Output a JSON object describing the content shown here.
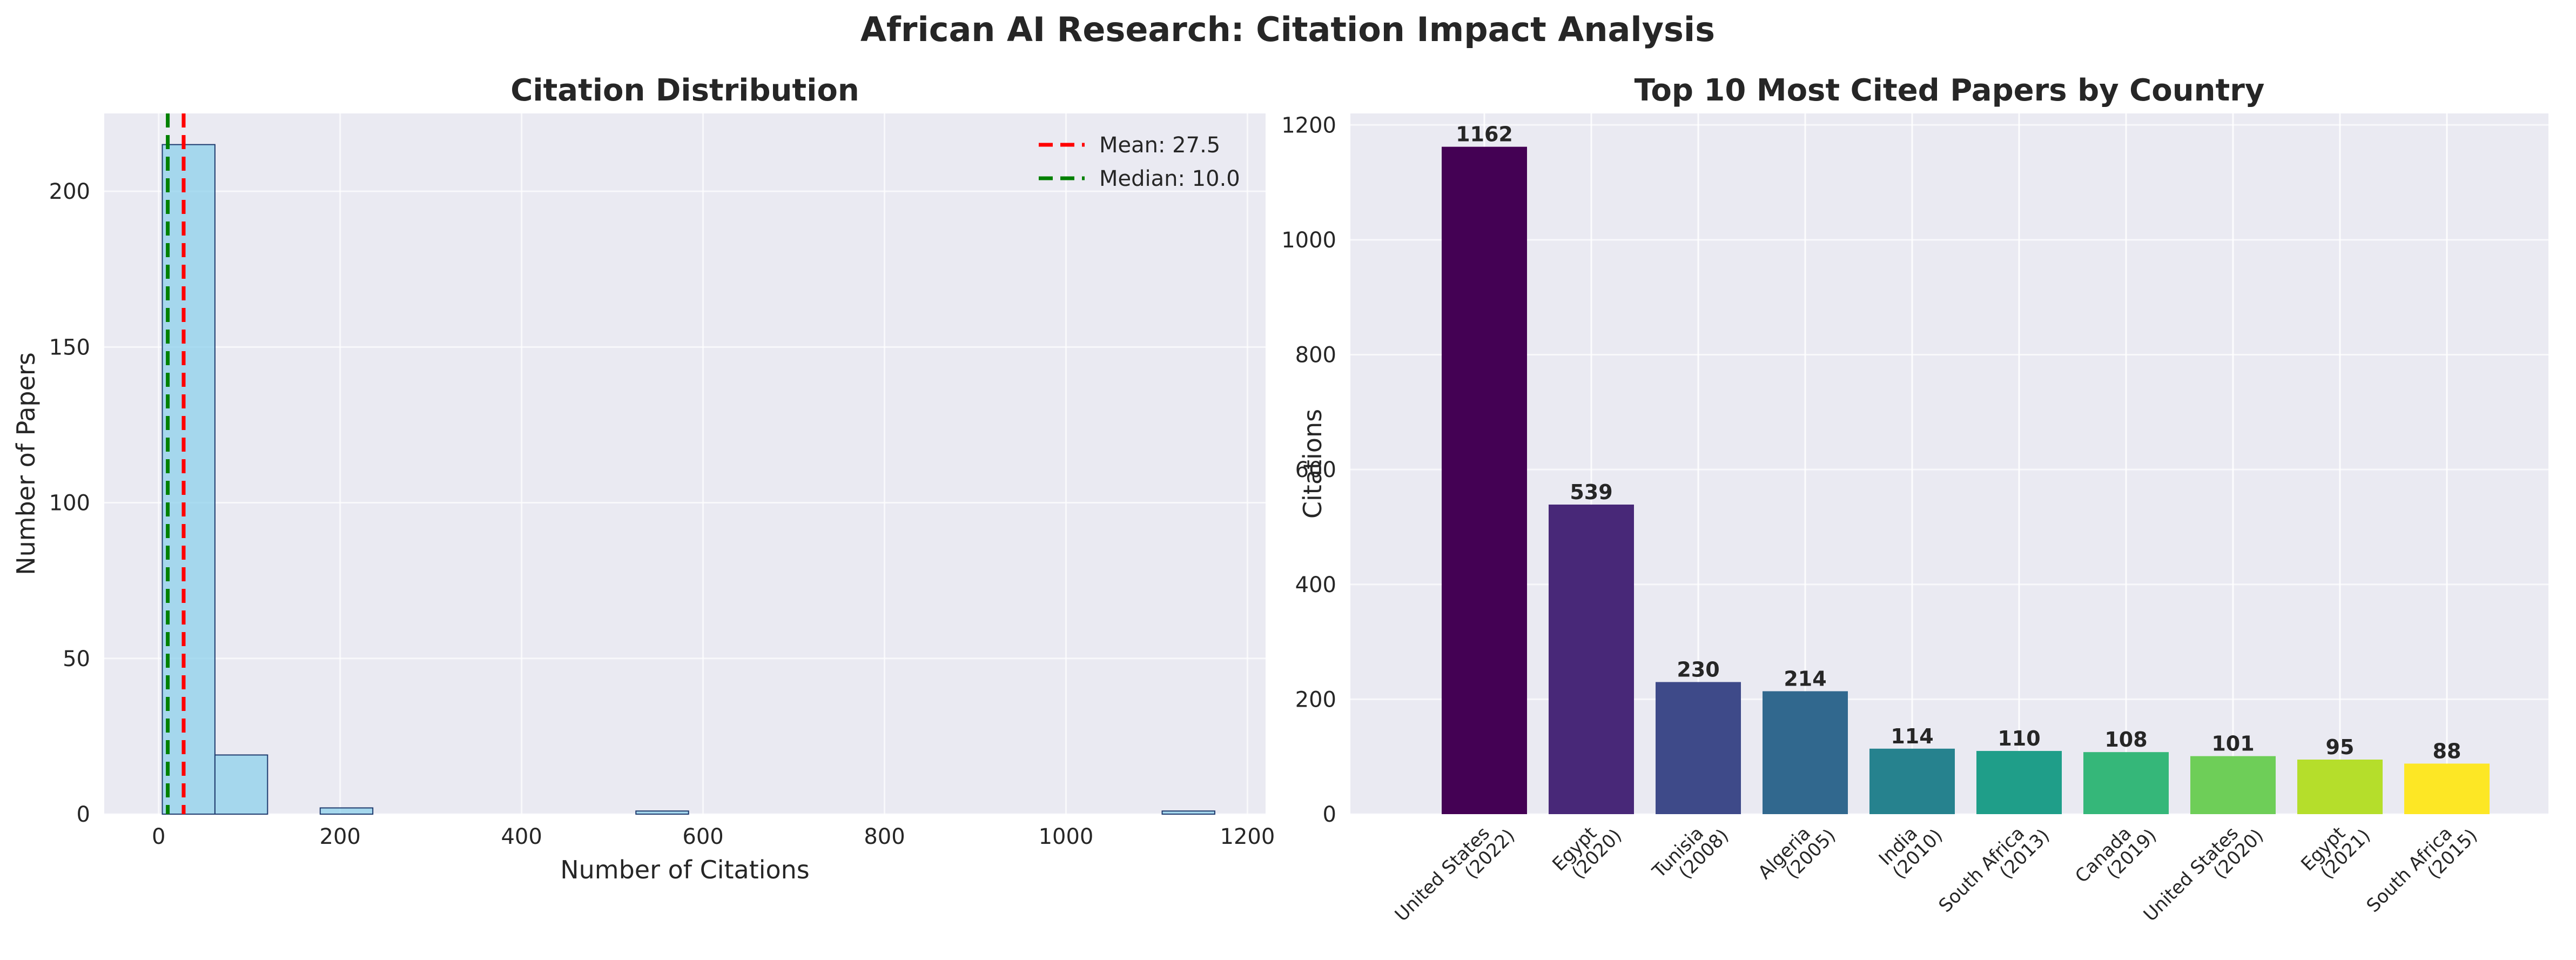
{
  "figure": {
    "title": "African AI Research: Citation Impact Analysis"
  },
  "chart_data": [
    {
      "type": "histogram",
      "title": "Citation Distribution",
      "xlabel": "Number of Citations",
      "ylabel": "Number of Papers",
      "xlim": [
        -60,
        1220
      ],
      "ylim": [
        0,
        225
      ],
      "xticks": [
        0,
        200,
        400,
        600,
        800,
        1000,
        1200
      ],
      "yticks": [
        0,
        50,
        100,
        150,
        200
      ],
      "grid": true,
      "bin_width": 58,
      "bins": [
        {
          "start": 4,
          "count": 215
        },
        {
          "start": 62,
          "count": 19
        },
        {
          "start": 178,
          "count": 2
        },
        {
          "start": 526,
          "count": 1
        },
        {
          "start": 1106,
          "count": 1
        }
      ],
      "bar_color": "#87ceeb",
      "reference_lines": [
        {
          "label": "Mean: 27.5",
          "value": 27.5,
          "color": "#ff0000"
        },
        {
          "label": "Median: 10.0",
          "value": 10.0,
          "color": "#008000"
        }
      ],
      "legend_position": "top-right"
    },
    {
      "type": "bar",
      "title": "Top 10 Most Cited Papers by Country",
      "xlabel": "",
      "ylabel": "Citations",
      "ylim": [
        0,
        1220
      ],
      "yticks": [
        0,
        200,
        400,
        600,
        800,
        1000,
        1200
      ],
      "grid": true,
      "categories": [
        [
          "United States",
          "(2022)"
        ],
        [
          "Egypt",
          "(2020)"
        ],
        [
          "Tunisia",
          "(2008)"
        ],
        [
          "Algeria",
          "(2005)"
        ],
        [
          "India",
          "(2010)"
        ],
        [
          "South Africa",
          "(2013)"
        ],
        [
          "Canada",
          "(2019)"
        ],
        [
          "United States",
          "(2020)"
        ],
        [
          "Egypt",
          "(2021)"
        ],
        [
          "South Africa",
          "(2015)"
        ]
      ],
      "values": [
        1162,
        539,
        230,
        214,
        114,
        110,
        108,
        101,
        95,
        88
      ],
      "colors": [
        "#440154",
        "#482878",
        "#3e4a89",
        "#31688e",
        "#26828e",
        "#1f9e89",
        "#35b779",
        "#6ece58",
        "#b5de2b",
        "#fde725"
      ]
    }
  ]
}
